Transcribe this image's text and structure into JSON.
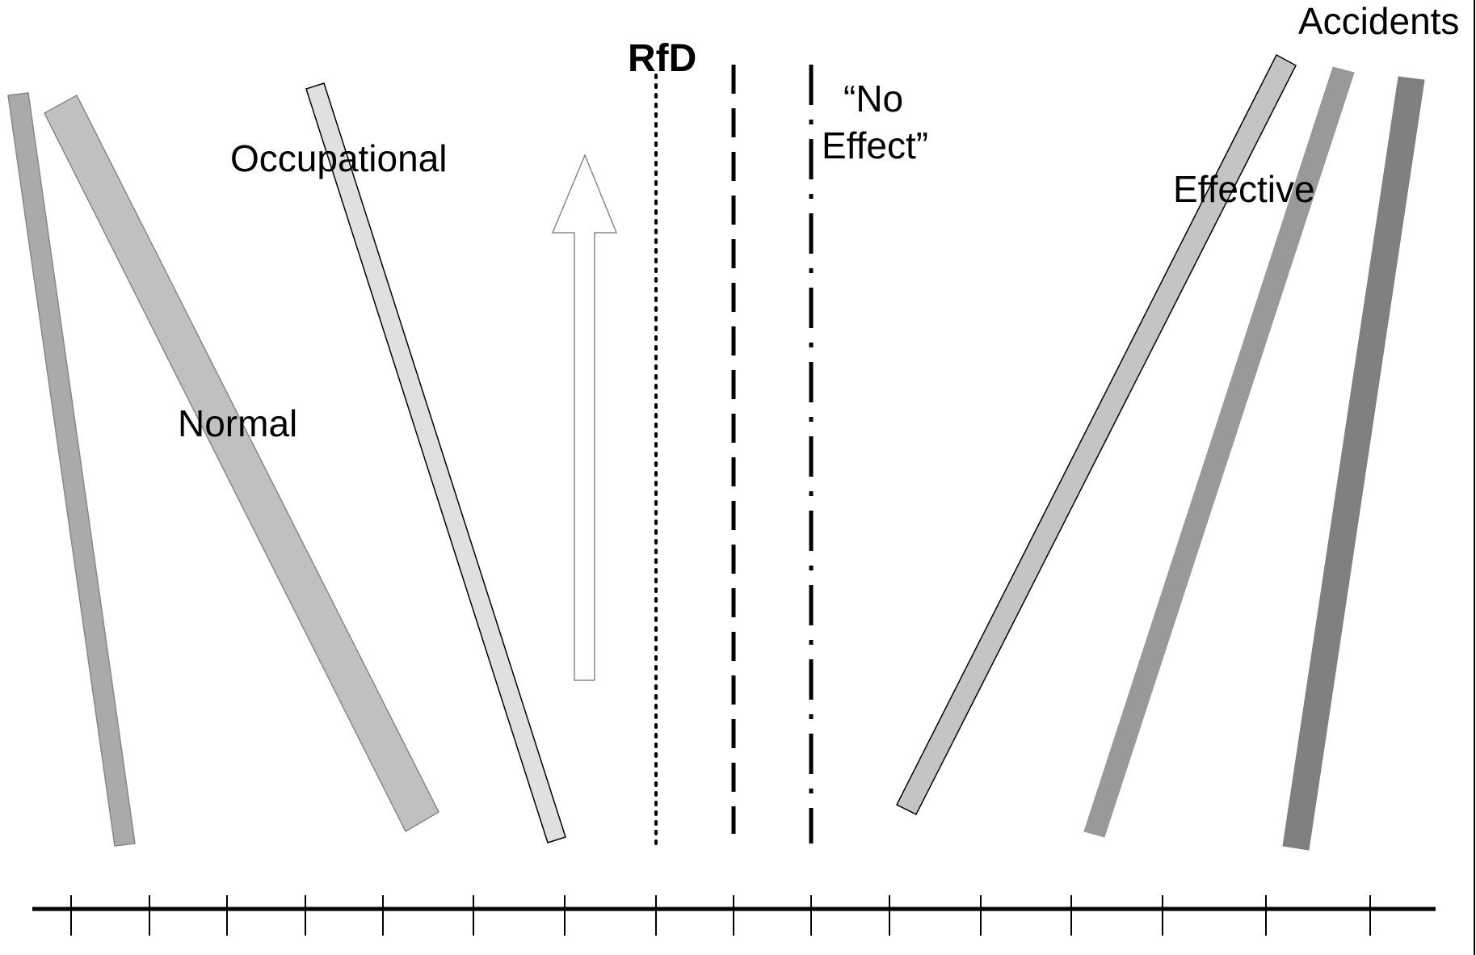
{
  "labels": {
    "normal": "Normal",
    "occupational": "Occupational",
    "rfd": "RfD",
    "no_effect_line1": "“No",
    "no_effect_line2": "Effect”",
    "effective": "Effective",
    "accidents": "Accidents"
  },
  "colors": {
    "normal_bar_left": "#aaaaaa",
    "normal_bar_wide": "#c0c0c0",
    "occupational_bar": "#e0e0e0",
    "effective_bar_1": "#c4c4c4",
    "effective_bar_2": "#999999",
    "accidents_bar": "#808080",
    "outline": "#000000",
    "arrow_fill": "#ffffff",
    "arrow_stroke": "#888888"
  },
  "axis": {
    "tick_count": 15
  },
  "reference_lines": [
    {
      "name": "rfd",
      "style": "dotted"
    },
    {
      "name": "threshold",
      "style": "dashed"
    },
    {
      "name": "no-effect",
      "style": "dash-dot"
    }
  ]
}
